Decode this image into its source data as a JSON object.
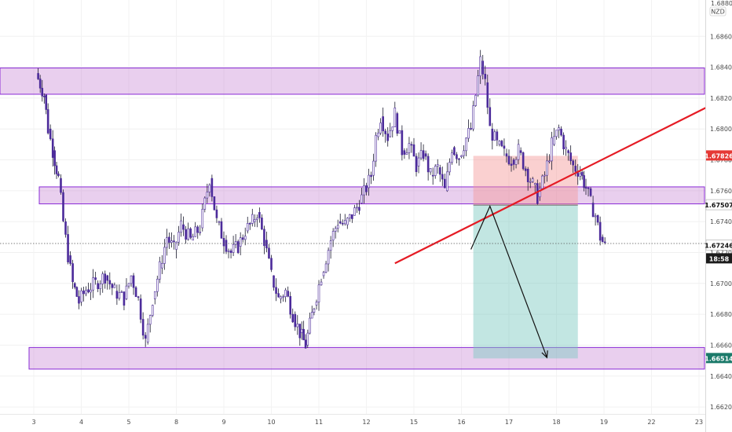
{
  "chart_data": {
    "type": "candlestick",
    "currency": "NZD",
    "axis_top_label": "1.68800",
    "y_ticks": [
      "1.68600",
      "1.68400",
      "1.68200",
      "1.68000",
      "1.67800",
      "1.67600",
      "1.67400",
      "1.67200",
      "1.67000",
      "1.66800",
      "1.66600",
      "1.66400",
      "1.66200"
    ],
    "x_ticks": [
      "3",
      "4",
      "5",
      "8",
      "9",
      "10",
      "11",
      "12",
      "15",
      "16",
      "17",
      "18",
      "19",
      "22",
      "23"
    ],
    "ylim": [
      1.6618,
      1.6882
    ],
    "price_tags": [
      {
        "label": "1.67826",
        "value": 1.67826,
        "color": "#e53935",
        "kind": "stop"
      },
      {
        "label": "1.67507",
        "value": 1.67507,
        "color": "#ffffff",
        "kind": "entry"
      },
      {
        "label": "1.67246",
        "value": 1.67246,
        "color": "#ffffff",
        "kind": "current"
      },
      {
        "label": "18:58",
        "value": 1.6717,
        "color": "#1c1c1c",
        "kind": "countdown"
      },
      {
        "label": "1.66514",
        "value": 1.66514,
        "color": "#1b7a6a",
        "kind": "target"
      }
    ],
    "zones": [
      {
        "name": "upper-resistance",
        "top": 1.68395,
        "bottom": 1.68225
      },
      {
        "name": "middle-zone",
        "top": 1.67625,
        "bottom": 1.67515
      },
      {
        "name": "lower-support",
        "top": 1.66585,
        "bottom": 1.66445
      }
    ],
    "position": {
      "type": "short",
      "entry": 1.67507,
      "stop": 1.67826,
      "target": 1.66514,
      "from_x": 16.25,
      "to_x": 18.45
    },
    "trendline": {
      "from": {
        "x": 9.6,
        "y": 1.6713
      },
      "to": {
        "x": 16.55,
        "y": 1.682
      },
      "color": "#e51b24"
    },
    "projection": [
      {
        "x": 16.2,
        "y": 1.6722
      },
      {
        "x": 16.6,
        "y": 1.675
      },
      {
        "x": 17.8,
        "y": 1.6652
      }
    ],
    "price_path": [
      [
        2.05,
        1.6836
      ],
      [
        2.22,
        1.6822
      ],
      [
        2.3,
        1.68
      ],
      [
        2.4,
        1.6786
      ],
      [
        2.52,
        1.6768
      ],
      [
        2.62,
        1.674
      ],
      [
        2.72,
        1.6718
      ],
      [
        2.82,
        1.67
      ],
      [
        2.95,
        1.6688
      ],
      [
        3.1,
        1.6696
      ],
      [
        3.3,
        1.67
      ],
      [
        3.5,
        1.6705
      ],
      [
        3.7,
        1.6695
      ],
      [
        3.9,
        1.669
      ],
      [
        4.05,
        1.6705
      ],
      [
        4.2,
        1.669
      ],
      [
        4.35,
        1.6662
      ],
      [
        4.5,
        1.669
      ],
      [
        4.65,
        1.671
      ],
      [
        4.8,
        1.673
      ],
      [
        4.95,
        1.6722
      ],
      [
        5.1,
        1.6738
      ],
      [
        5.3,
        1.6728
      ],
      [
        5.5,
        1.6736
      ],
      [
        5.7,
        1.6768
      ],
      [
        5.85,
        1.674
      ],
      [
        6.0,
        1.6728
      ],
      [
        6.15,
        1.672
      ],
      [
        6.3,
        1.6724
      ],
      [
        6.45,
        1.6734
      ],
      [
        6.6,
        1.674
      ],
      [
        6.7,
        1.6746
      ],
      [
        6.85,
        1.6728
      ],
      [
        7.0,
        1.6705
      ],
      [
        7.15,
        1.669
      ],
      [
        7.3,
        1.6695
      ],
      [
        7.45,
        1.668
      ],
      [
        7.6,
        1.6668
      ],
      [
        7.72,
        1.666
      ],
      [
        7.9,
        1.6686
      ],
      [
        8.05,
        1.6705
      ],
      [
        8.25,
        1.6728
      ],
      [
        8.4,
        1.674
      ],
      [
        8.55,
        1.6738
      ],
      [
        8.7,
        1.6744
      ],
      [
        8.85,
        1.6752
      ],
      [
        9.0,
        1.6762
      ],
      [
        9.1,
        1.677
      ],
      [
        9.2,
        1.6795
      ],
      [
        9.3,
        1.6808
      ],
      [
        9.45,
        1.6795
      ],
      [
        9.6,
        1.681
      ],
      [
        9.75,
        1.6786
      ],
      [
        9.9,
        1.679
      ],
      [
        10.05,
        1.6776
      ],
      [
        10.2,
        1.6784
      ],
      [
        10.35,
        1.677
      ],
      [
        10.5,
        1.6775
      ],
      [
        10.65,
        1.676
      ],
      [
        10.8,
        1.6788
      ],
      [
        10.95,
        1.6782
      ],
      [
        11.1,
        1.6794
      ],
      [
        11.2,
        1.68
      ],
      [
        11.3,
        1.6822
      ],
      [
        11.4,
        1.6844
      ],
      [
        11.5,
        1.683
      ],
      [
        11.6,
        1.68
      ],
      [
        11.75,
        1.679
      ],
      [
        11.9,
        1.6784
      ],
      [
        12.05,
        1.678
      ],
      [
        12.2,
        1.6786
      ],
      [
        12.35,
        1.6774
      ],
      [
        12.5,
        1.6764
      ],
      [
        12.6,
        1.6756
      ],
      [
        12.75,
        1.677
      ],
      [
        12.9,
        1.679
      ],
      [
        13.05,
        1.68
      ],
      [
        13.2,
        1.6786
      ],
      [
        13.35,
        1.6776
      ],
      [
        13.5,
        1.6772
      ],
      [
        13.62,
        1.6762
      ],
      [
        13.72,
        1.6752
      ],
      [
        13.82,
        1.6744
      ],
      [
        13.92,
        1.673
      ],
      [
        14.02,
        1.6724
      ]
    ]
  }
}
